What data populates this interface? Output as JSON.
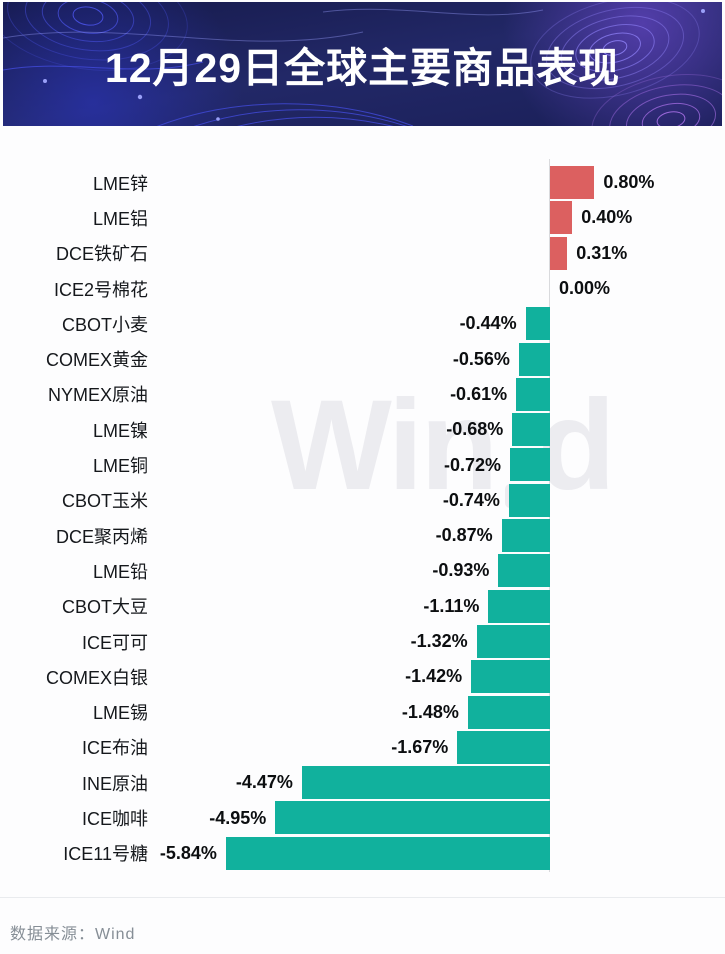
{
  "header": {
    "title": "12月29日全球主要商品表现"
  },
  "watermark": {
    "text": "Wind",
    "part_win": "Win",
    "part_d": "d"
  },
  "footer": {
    "source_label": "数据来源：Wind"
  },
  "colors": {
    "banner_bg": "#1d2264",
    "title_text": "#ffffff",
    "positive_bar": "#dc6060",
    "negative_bar": "#11b19d",
    "axis_baseline": "#d9dadd",
    "category_text": "#15181c",
    "value_text": "#0c0e10",
    "watermark_text": "#ececf0",
    "footer_text": "#868e96"
  },
  "chart_data": {
    "type": "bar",
    "orientation": "horizontal",
    "title": "12月29日全球主要商品表现",
    "value_unit": "%",
    "xlim": [
      -5.84,
      0.8
    ],
    "grid": false,
    "legend": false,
    "categories": [
      "LME锌",
      "LME铝",
      "DCE铁矿石",
      "ICE2号棉花",
      "CBOT小麦",
      "COMEX黄金",
      "NYMEX原油",
      "LME镍",
      "LME铜",
      "CBOT玉米",
      "DCE聚丙烯",
      "LME铅",
      "CBOT大豆",
      "ICE可可",
      "COMEX白银",
      "LME锡",
      "ICE布油",
      "INE原油",
      "ICE咖啡",
      "ICE11号糖"
    ],
    "values": [
      0.8,
      0.4,
      0.31,
      0.0,
      -0.44,
      -0.56,
      -0.61,
      -0.68,
      -0.72,
      -0.74,
      -0.87,
      -0.93,
      -1.11,
      -1.32,
      -1.42,
      -1.48,
      -1.67,
      -4.47,
      -4.95,
      -5.84
    ],
    "value_labels": [
      "0.80%",
      "0.40%",
      "0.31%",
      "0.00%",
      "-0.44%",
      "-0.56%",
      "-0.61%",
      "-0.68%",
      "-0.72%",
      "-0.74%",
      "-0.87%",
      "-0.93%",
      "-1.11%",
      "-1.32%",
      "-1.42%",
      "-1.48%",
      "-1.67%",
      "-4.47%",
      "-4.95%",
      "-5.84%"
    ]
  }
}
